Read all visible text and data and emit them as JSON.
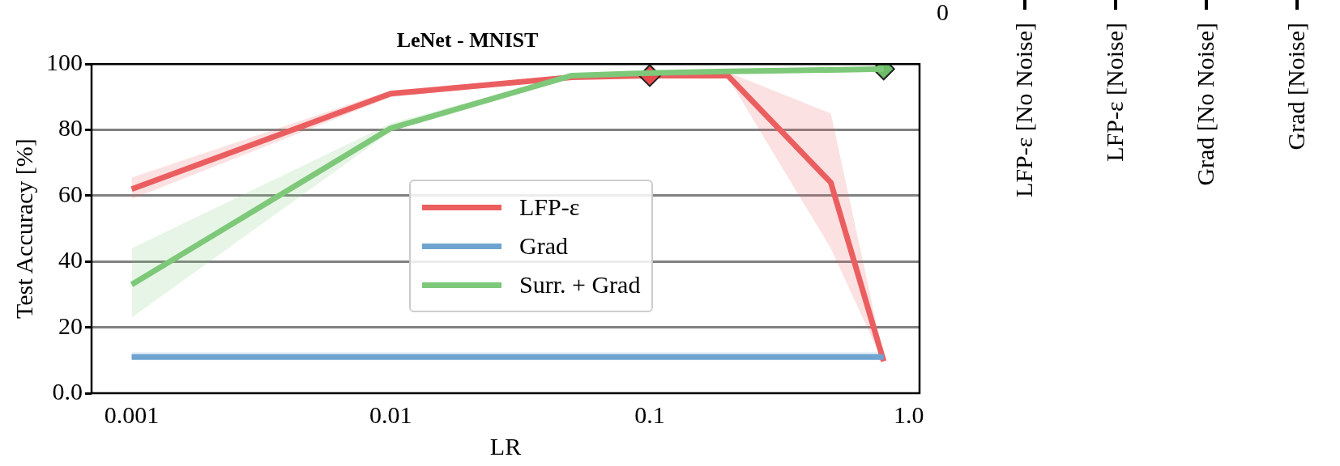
{
  "chart_data": [
    {
      "type": "line",
      "title": "LeNet - MNIST",
      "xlabel": "LR",
      "ylabel": "Test Accuracy [%]",
      "log": "x",
      "xlim": [
        0.0007,
        1.1
      ],
      "xticks": [
        0.001,
        0.01,
        0.1,
        {
          "value": 1,
          "label": "1.0"
        }
      ],
      "ylim": [
        0,
        100
      ],
      "yticks": [
        {
          "value": 0,
          "label": "0.0"
        },
        20,
        40,
        60,
        80,
        100
      ],
      "grid": "y",
      "legend": "center",
      "line_style": "solid",
      "marker": "none",
      "series": [
        {
          "name": "LFP-ε",
          "color": "#eb5e60",
          "x": [
            0.001,
            0.01,
            0.05,
            0.1,
            0.2,
            0.5,
            0.8
          ],
          "values": [
            62,
            91,
            96,
            96.5,
            96.5,
            64,
            9.7
          ],
          "lower": [
            59,
            90,
            95.5,
            96,
            96,
            44,
            9
          ],
          "upper": [
            65.5,
            92,
            96.5,
            97,
            97.5,
            85,
            11
          ]
        },
        {
          "name": "Grad",
          "color": "#6fa3d0",
          "x": [
            0.001,
            0.01,
            0.05,
            0.1,
            0.2,
            0.5,
            0.8
          ],
          "values": [
            11,
            11,
            11,
            11,
            11,
            11,
            11
          ],
          "lower": [
            10,
            10,
            10,
            10,
            10,
            10,
            10
          ],
          "upper": [
            12.5,
            12.5,
            12.5,
            12.5,
            12.5,
            12.5,
            12.5
          ]
        },
        {
          "name": "Surr. + Grad",
          "color": "#7ec87a",
          "x": [
            0.001,
            0.01,
            0.05,
            0.1,
            0.2,
            0.5,
            0.8
          ],
          "values": [
            33,
            80.5,
            96.5,
            97.3,
            97.8,
            98.2,
            98.5
          ],
          "lower": [
            23,
            79.5,
            96,
            96.8,
            97.3,
            97.7,
            98
          ],
          "upper": [
            44,
            82,
            97,
            97.8,
            98.3,
            98.7,
            99
          ]
        },
        {
          "type": "scatter",
          "marker": "diamond",
          "color": "#e8484c",
          "x": [
            0.1
          ],
          "values": [
            96.5
          ]
        },
        {
          "type": "scatter",
          "marker": "diamond",
          "color": "#6cbc68",
          "x": [
            0.8
          ],
          "values": [
            98.5
          ]
        }
      ]
    },
    {
      "type": "other",
      "categories": [
        "LFP-ε [No Noise]",
        "LFP-ε [Noise]",
        "Grad [No Noise]",
        "Grad [Noise]"
      ],
      "annotations": [
        "0"
      ]
    }
  ]
}
